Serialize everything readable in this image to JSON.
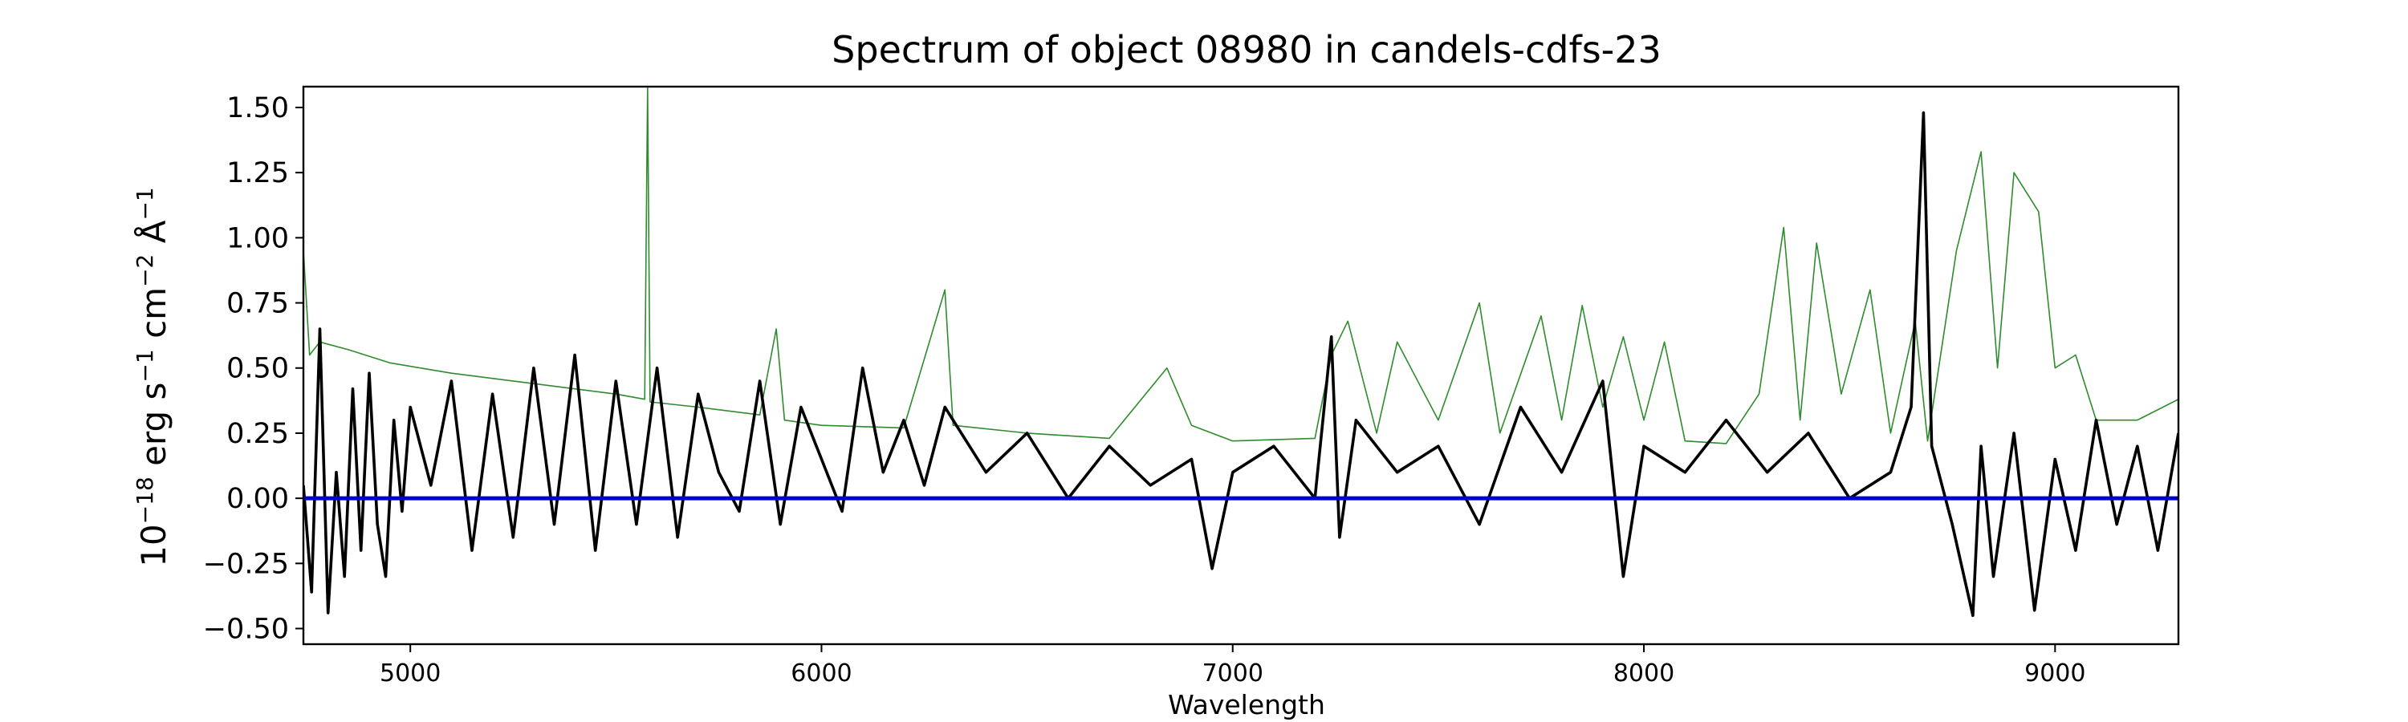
{
  "chart_data": {
    "type": "line",
    "title": "Spectrum of object 08980 in candels-cdfs-23",
    "xlabel": "Wavelength",
    "ylabel_parts": {
      "base": "10",
      "exp": "−18",
      "unit1": " erg s",
      "exp1": "−1",
      "unit2": " cm",
      "exp2": "−2",
      "unit3": " Å",
      "exp3": "−1"
    },
    "xlim": [
      4740,
      9300
    ],
    "ylim": [
      -0.56,
      1.58
    ],
    "xticks": [
      5000,
      6000,
      7000,
      8000,
      9000
    ],
    "yticks": [
      -0.5,
      -0.25,
      0.0,
      0.25,
      0.5,
      0.75,
      1.0,
      1.25,
      1.5
    ],
    "ytick_labels": [
      "−0.50",
      "−0.25",
      "0.00",
      "0.25",
      "0.50",
      "0.75",
      "1.00",
      "1.25",
      "1.50"
    ],
    "grid": false,
    "series": [
      {
        "role": "flux",
        "color": "#000000",
        "points": [
          [
            4740,
            0.05
          ],
          [
            4760,
            -0.36
          ],
          [
            4780,
            0.65
          ],
          [
            4800,
            -0.44
          ],
          [
            4820,
            0.1
          ],
          [
            4840,
            -0.3
          ],
          [
            4860,
            0.42
          ],
          [
            4880,
            -0.2
          ],
          [
            4900,
            0.48
          ],
          [
            4920,
            -0.1
          ],
          [
            4940,
            -0.3
          ],
          [
            4960,
            0.3
          ],
          [
            4980,
            -0.05
          ],
          [
            5000,
            0.35
          ],
          [
            5050,
            0.05
          ],
          [
            5100,
            0.45
          ],
          [
            5150,
            -0.2
          ],
          [
            5200,
            0.4
          ],
          [
            5250,
            -0.15
          ],
          [
            5300,
            0.5
          ],
          [
            5350,
            -0.1
          ],
          [
            5400,
            0.55
          ],
          [
            5450,
            -0.2
          ],
          [
            5500,
            0.45
          ],
          [
            5550,
            -0.1
          ],
          [
            5600,
            0.5
          ],
          [
            5650,
            -0.15
          ],
          [
            5700,
            0.4
          ],
          [
            5750,
            0.1
          ],
          [
            5800,
            -0.05
          ],
          [
            5850,
            0.45
          ],
          [
            5900,
            -0.1
          ],
          [
            5950,
            0.35
          ],
          [
            6000,
            0.15
          ],
          [
            6050,
            -0.05
          ],
          [
            6100,
            0.5
          ],
          [
            6150,
            0.1
          ],
          [
            6200,
            0.3
          ],
          [
            6250,
            0.05
          ],
          [
            6300,
            0.35
          ],
          [
            6400,
            0.1
          ],
          [
            6500,
            0.25
          ],
          [
            6600,
            0.0
          ],
          [
            6700,
            0.2
          ],
          [
            6800,
            0.05
          ],
          [
            6900,
            0.15
          ],
          [
            6950,
            -0.27
          ],
          [
            7000,
            0.1
          ],
          [
            7100,
            0.2
          ],
          [
            7200,
            0.0
          ],
          [
            7240,
            0.62
          ],
          [
            7260,
            -0.15
          ],
          [
            7300,
            0.3
          ],
          [
            7400,
            0.1
          ],
          [
            7500,
            0.2
          ],
          [
            7600,
            -0.1
          ],
          [
            7700,
            0.35
          ],
          [
            7800,
            0.1
          ],
          [
            7900,
            0.45
          ],
          [
            7950,
            -0.3
          ],
          [
            8000,
            0.2
          ],
          [
            8100,
            0.1
          ],
          [
            8200,
            0.3
          ],
          [
            8300,
            0.1
          ],
          [
            8400,
            0.25
          ],
          [
            8500,
            0.0
          ],
          [
            8600,
            0.1
          ],
          [
            8650,
            0.35
          ],
          [
            8680,
            1.48
          ],
          [
            8700,
            0.2
          ],
          [
            8750,
            -0.1
          ],
          [
            8800,
            -0.45
          ],
          [
            8820,
            0.2
          ],
          [
            8850,
            -0.3
          ],
          [
            8900,
            0.25
          ],
          [
            8950,
            -0.43
          ],
          [
            9000,
            0.15
          ],
          [
            9050,
            -0.2
          ],
          [
            9100,
            0.3
          ],
          [
            9150,
            -0.1
          ],
          [
            9200,
            0.2
          ],
          [
            9250,
            -0.2
          ],
          [
            9300,
            0.25
          ]
        ]
      },
      {
        "role": "error",
        "color": "#2e8b2e",
        "points": [
          [
            4740,
            0.95
          ],
          [
            4755,
            0.55
          ],
          [
            4780,
            0.6
          ],
          [
            4850,
            0.57
          ],
          [
            4950,
            0.52
          ],
          [
            5100,
            0.48
          ],
          [
            5300,
            0.44
          ],
          [
            5500,
            0.4
          ],
          [
            5570,
            0.38
          ],
          [
            5577,
            1.58
          ],
          [
            5583,
            0.37
          ],
          [
            5700,
            0.35
          ],
          [
            5850,
            0.32
          ],
          [
            5890,
            0.65
          ],
          [
            5910,
            0.3
          ],
          [
            6000,
            0.28
          ],
          [
            6200,
            0.27
          ],
          [
            6300,
            0.8
          ],
          [
            6320,
            0.28
          ],
          [
            6500,
            0.25
          ],
          [
            6700,
            0.23
          ],
          [
            6840,
            0.5
          ],
          [
            6900,
            0.28
          ],
          [
            7000,
            0.22
          ],
          [
            7200,
            0.23
          ],
          [
            7240,
            0.55
          ],
          [
            7280,
            0.68
          ],
          [
            7350,
            0.25
          ],
          [
            7400,
            0.6
          ],
          [
            7500,
            0.3
          ],
          [
            7600,
            0.75
          ],
          [
            7650,
            0.25
          ],
          [
            7750,
            0.7
          ],
          [
            7800,
            0.3
          ],
          [
            7850,
            0.74
          ],
          [
            7900,
            0.35
          ],
          [
            7950,
            0.62
          ],
          [
            8000,
            0.3
          ],
          [
            8050,
            0.6
          ],
          [
            8100,
            0.22
          ],
          [
            8200,
            0.21
          ],
          [
            8280,
            0.4
          ],
          [
            8340,
            1.04
          ],
          [
            8380,
            0.3
          ],
          [
            8420,
            0.98
          ],
          [
            8480,
            0.4
          ],
          [
            8550,
            0.8
          ],
          [
            8600,
            0.25
          ],
          [
            8660,
            0.68
          ],
          [
            8690,
            0.22
          ],
          [
            8760,
            0.95
          ],
          [
            8820,
            1.33
          ],
          [
            8860,
            0.5
          ],
          [
            8900,
            1.25
          ],
          [
            8960,
            1.1
          ],
          [
            9000,
            0.5
          ],
          [
            9050,
            0.55
          ],
          [
            9100,
            0.3
          ],
          [
            9200,
            0.3
          ],
          [
            9300,
            0.38
          ]
        ]
      },
      {
        "role": "zero-line",
        "color": "#0000cc",
        "points": [
          [
            4740,
            0.0
          ],
          [
            9300,
            0.0
          ]
        ]
      }
    ]
  }
}
